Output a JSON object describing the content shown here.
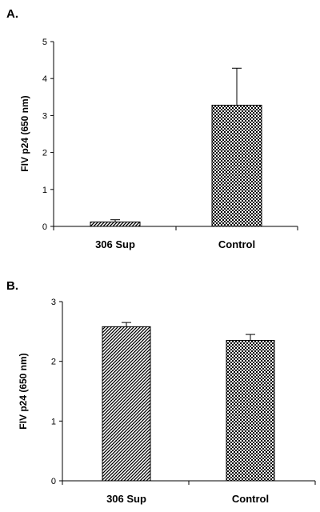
{
  "colors": {
    "ink": "#000000",
    "background": "#ffffff"
  },
  "chart_data": [
    {
      "panel": "A.",
      "type": "bar",
      "categories": [
        "306 Sup",
        "Control"
      ],
      "series": [
        {
          "values": [
            0.12,
            3.28
          ],
          "errors": [
            0.06,
            1.0
          ],
          "patterns": [
            "diagonal-hatch",
            "checker"
          ]
        }
      ],
      "xlabel": "",
      "ylabel": "FIV p24 (650 nm)",
      "ylim": [
        0,
        5
      ],
      "yticks": [
        0,
        1,
        2,
        3,
        4,
        5
      ],
      "ytick_labels": [
        "0",
        "1",
        "2",
        "3",
        "4",
        "5"
      ],
      "grid": false,
      "legend": "none"
    },
    {
      "panel": "B.",
      "type": "bar",
      "categories": [
        "306 Sup",
        "Control"
      ],
      "series": [
        {
          "values": [
            2.58,
            2.35
          ],
          "errors": [
            0.07,
            0.1
          ],
          "patterns": [
            "diagonal-hatch",
            "checker"
          ]
        }
      ],
      "xlabel": "",
      "ylabel": "FIV p24 (650 nm)",
      "ylim": [
        0,
        3
      ],
      "yticks": [
        0,
        1,
        2,
        3
      ],
      "ytick_labels": [
        "0",
        "1",
        "2",
        "3"
      ],
      "grid": false,
      "legend": "none"
    }
  ]
}
